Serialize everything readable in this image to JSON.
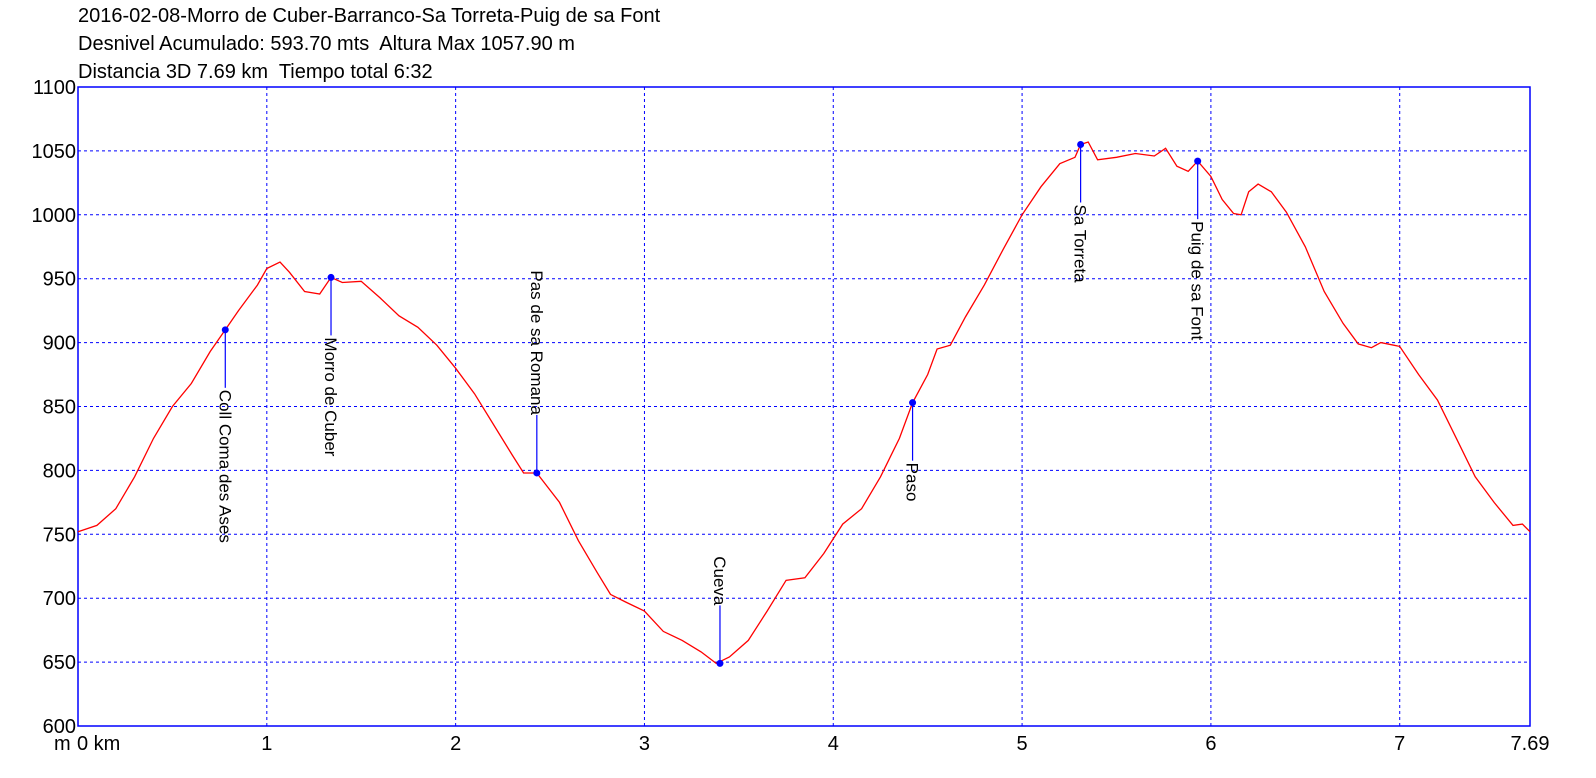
{
  "header": {
    "title": "2016-02-08-Morro de Cuber-Barranco-Sa Torreta-Puig de sa Font",
    "stats_line1": "Desnivel Acumulado: 593.70 mts  Altura Max 1057.90 m",
    "stats_line2": "Distancia 3D 7.69 km  Tiempo total 6:32"
  },
  "chart_data": {
    "type": "line",
    "xlim": [
      0,
      7.69
    ],
    "ylim": [
      600,
      1100
    ],
    "x_ticks": [
      0,
      1,
      2,
      3,
      4,
      5,
      6,
      7,
      7.69
    ],
    "x_tick_labels": [
      "0 km",
      "1",
      "2",
      "3",
      "4",
      "5",
      "6",
      "7",
      "7.69"
    ],
    "x_axis_prefix": "m",
    "y_ticks": [
      600,
      650,
      700,
      750,
      800,
      850,
      900,
      950,
      1000,
      1050,
      1100
    ],
    "y_tick_labels": [
      "600",
      "650",
      "700",
      "750",
      "800",
      "850",
      "900",
      "950",
      "1000",
      "1050",
      "1100"
    ],
    "grid": true,
    "line_color": "#ff0000",
    "grid_color": "#0000ff",
    "frame_color": "#0000ff",
    "waypoint_color": "#0000ff",
    "profile": [
      [
        0.0,
        752
      ],
      [
        0.1,
        757
      ],
      [
        0.2,
        770
      ],
      [
        0.3,
        795
      ],
      [
        0.4,
        825
      ],
      [
        0.5,
        850
      ],
      [
        0.6,
        868
      ],
      [
        0.7,
        893
      ],
      [
        0.78,
        910
      ],
      [
        0.85,
        925
      ],
      [
        0.95,
        945
      ],
      [
        1.0,
        958
      ],
      [
        1.07,
        963
      ],
      [
        1.12,
        955
      ],
      [
        1.2,
        940
      ],
      [
        1.28,
        938
      ],
      [
        1.34,
        951
      ],
      [
        1.4,
        947
      ],
      [
        1.5,
        948
      ],
      [
        1.6,
        935
      ],
      [
        1.7,
        921
      ],
      [
        1.8,
        912
      ],
      [
        1.9,
        898
      ],
      [
        2.0,
        880
      ],
      [
        2.1,
        860
      ],
      [
        2.2,
        836
      ],
      [
        2.3,
        812
      ],
      [
        2.36,
        798
      ],
      [
        2.43,
        798
      ],
      [
        2.55,
        775
      ],
      [
        2.65,
        745
      ],
      [
        2.75,
        720
      ],
      [
        2.82,
        703
      ],
      [
        2.9,
        697
      ],
      [
        3.0,
        690
      ],
      [
        3.1,
        674
      ],
      [
        3.2,
        667
      ],
      [
        3.3,
        658
      ],
      [
        3.38,
        649
      ],
      [
        3.45,
        654
      ],
      [
        3.55,
        667
      ],
      [
        3.65,
        690
      ],
      [
        3.75,
        714
      ],
      [
        3.85,
        716
      ],
      [
        3.95,
        735
      ],
      [
        4.05,
        758
      ],
      [
        4.15,
        770
      ],
      [
        4.25,
        795
      ],
      [
        4.35,
        825
      ],
      [
        4.42,
        853
      ],
      [
        4.5,
        875
      ],
      [
        4.55,
        895
      ],
      [
        4.62,
        898
      ],
      [
        4.7,
        920
      ],
      [
        4.8,
        945
      ],
      [
        4.9,
        973
      ],
      [
        5.0,
        1000
      ],
      [
        5.1,
        1022
      ],
      [
        5.2,
        1040
      ],
      [
        5.28,
        1045
      ],
      [
        5.31,
        1055
      ],
      [
        5.35,
        1057
      ],
      [
        5.4,
        1043
      ],
      [
        5.5,
        1045
      ],
      [
        5.6,
        1048
      ],
      [
        5.7,
        1046
      ],
      [
        5.76,
        1052
      ],
      [
        5.82,
        1038
      ],
      [
        5.88,
        1034
      ],
      [
        5.93,
        1042
      ],
      [
        6.0,
        1030
      ],
      [
        6.06,
        1012
      ],
      [
        6.12,
        1001
      ],
      [
        6.16,
        1000
      ],
      [
        6.2,
        1018
      ],
      [
        6.25,
        1024
      ],
      [
        6.32,
        1018
      ],
      [
        6.4,
        1002
      ],
      [
        6.5,
        975
      ],
      [
        6.6,
        940
      ],
      [
        6.7,
        915
      ],
      [
        6.78,
        899
      ],
      [
        6.85,
        896
      ],
      [
        6.9,
        900
      ],
      [
        7.0,
        897
      ],
      [
        7.1,
        875
      ],
      [
        7.2,
        855
      ],
      [
        7.3,
        825
      ],
      [
        7.4,
        795
      ],
      [
        7.5,
        775
      ],
      [
        7.6,
        757
      ],
      [
        7.65,
        758
      ],
      [
        7.69,
        752
      ]
    ],
    "waypoints": [
      {
        "name": "Coll Coma des Ases",
        "x": 0.78,
        "y": 910,
        "side": "below"
      },
      {
        "name": "Morro de Cuber",
        "x": 1.34,
        "y": 951,
        "side": "below"
      },
      {
        "name": "Pas de sa Romana",
        "x": 2.43,
        "y": 798,
        "side": "above"
      },
      {
        "name": "Cueva",
        "x": 3.4,
        "y": 649,
        "side": "above"
      },
      {
        "name": "Paso",
        "x": 4.42,
        "y": 853,
        "side": "below"
      },
      {
        "name": "Sa Torreta",
        "x": 5.31,
        "y": 1055,
        "side": "below"
      },
      {
        "name": "Puig de sa Font",
        "x": 5.93,
        "y": 1042,
        "side": "below"
      }
    ]
  }
}
